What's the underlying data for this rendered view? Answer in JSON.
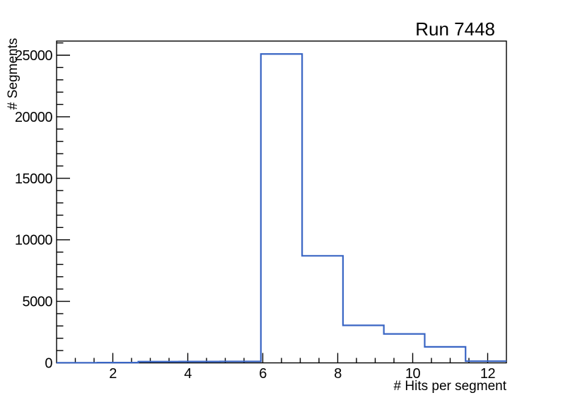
{
  "title": "Run 7448",
  "axes": {
    "x_title": "# Hits per segment",
    "y_title": "# Segments"
  },
  "chart_data": {
    "type": "bar",
    "style": "step-histogram",
    "title": "Run 7448",
    "xlabel": "# Hits per segment",
    "ylabel": "# Segments",
    "xlim": [
      0.5,
      12.5
    ],
    "ylim": [
      0,
      26150
    ],
    "bin_edges": [
      0.5,
      1.59,
      2.68,
      3.77,
      4.86,
      5.95,
      7.05,
      8.14,
      9.23,
      10.32,
      11.41,
      12.5
    ],
    "counts": [
      10,
      20,
      100,
      110,
      120,
      25100,
      8700,
      3050,
      2350,
      1300,
      140
    ],
    "x_major_ticks": [
      2,
      4,
      6,
      8,
      10,
      12
    ],
    "x_minor_step": 0.5,
    "y_major_ticks": [
      0,
      5000,
      10000,
      15000,
      20000,
      25000
    ],
    "y_minor_step": 1000,
    "grid": false,
    "legend": "none",
    "line_color": "#3965c4",
    "frame_color": "#000000",
    "background_color": "#ffffff"
  }
}
